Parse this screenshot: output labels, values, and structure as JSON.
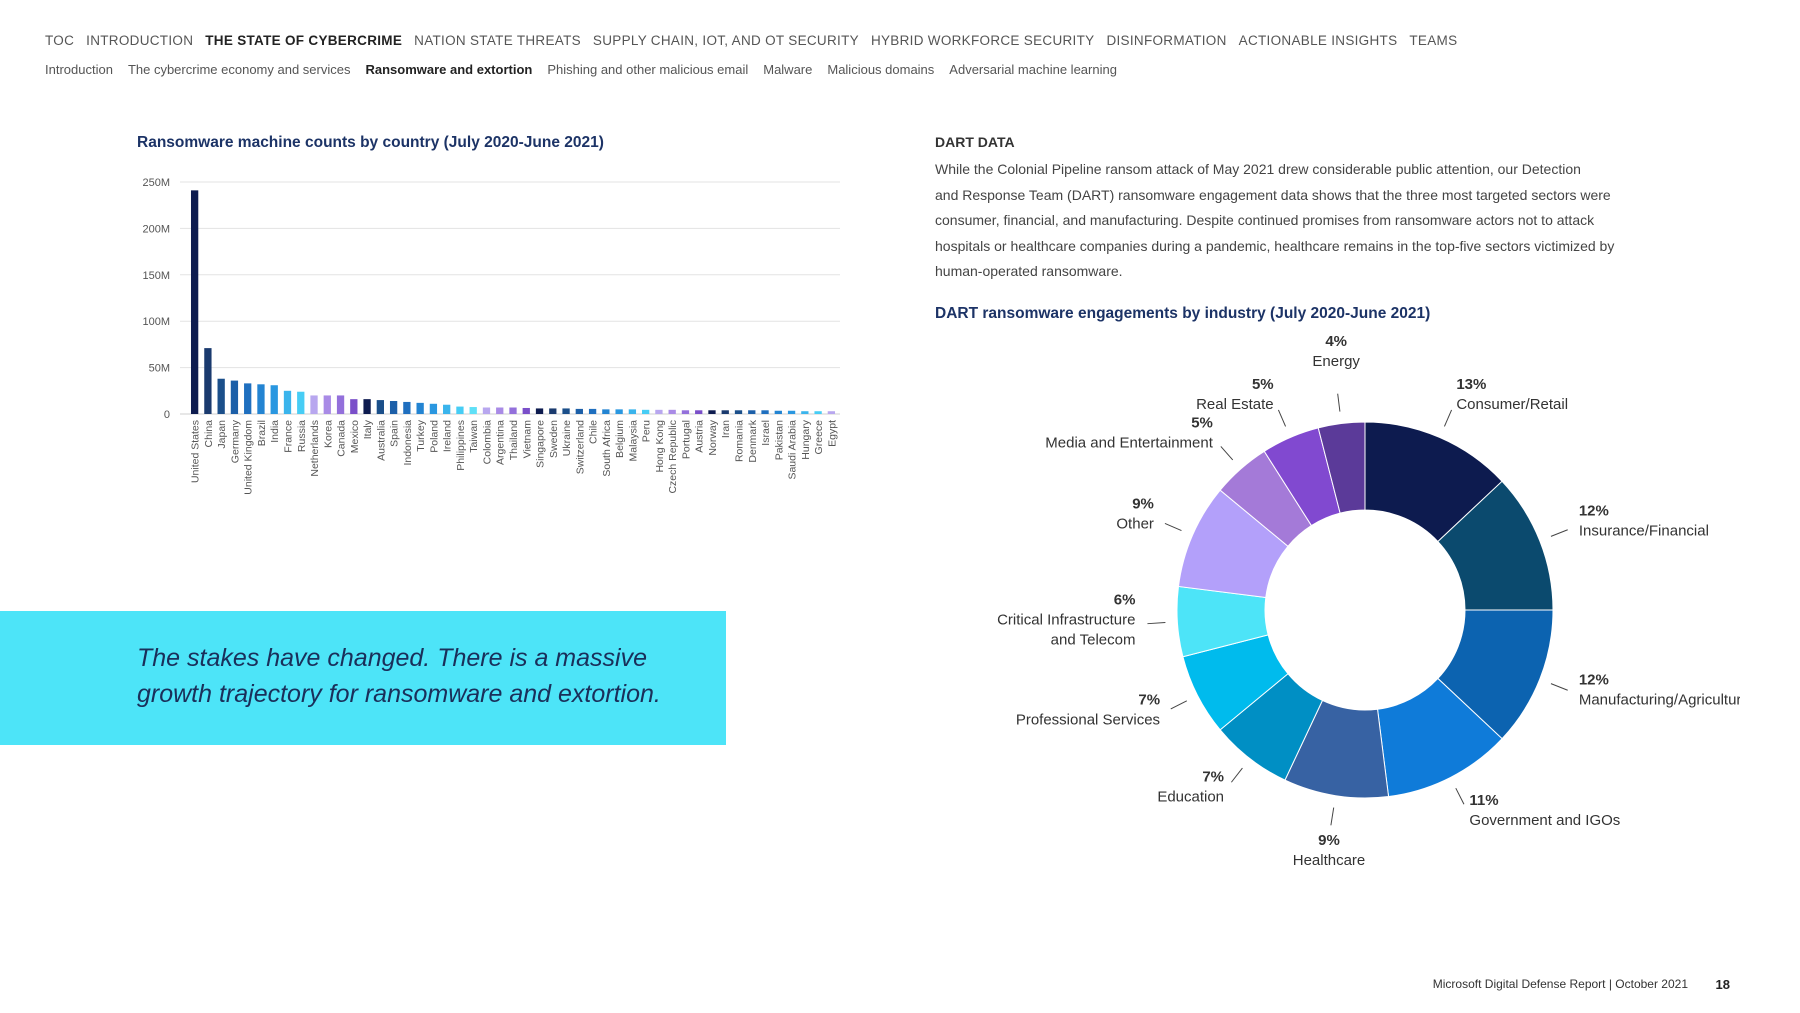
{
  "topnav": {
    "items": [
      "TOC",
      "INTRODUCTION",
      "THE STATE OF CYBERCRIME",
      "NATION STATE THREATS",
      "SUPPLY CHAIN, IOT, AND OT SECURITY",
      "HYBRID WORKFORCE SECURITY",
      "DISINFORMATION",
      "ACTIONABLE INSIGHTS",
      "TEAMS"
    ],
    "active": 2
  },
  "subnav": {
    "items": [
      "Introduction",
      "The cybercrime economy and services",
      "Ransomware and extortion",
      "Phishing and other malicious email",
      "Malware",
      "Malicious domains",
      "Adversarial machine learning"
    ],
    "active": 2
  },
  "dart": {
    "heading": "DART DATA",
    "lines": [
      "While the Colonial Pipeline ransom attack of May 2021 drew considerable public attention, our Detection",
      "and Response Team (DART) ransomware engagement data shows that the three most targeted sectors were",
      "consumer, financial, and manufacturing. Despite continued promises from ransomware actors not to attack",
      "hospitals or healthcare companies during a pandemic, healthcare remains in the top-five sectors victimized by",
      "human-operated ransomware."
    ]
  },
  "quote": {
    "line1": "The stakes have changed. There is a massive",
    "line2": "growth trajectory for ransomware and extortion."
  },
  "footer": {
    "text": "Microsoft Digital Defense Report | October 2021",
    "page": "18"
  },
  "chart_data": [
    {
      "type": "bar",
      "title": "Ransomware machine counts by country (July 2020-June 2021)",
      "xlabel": "",
      "ylabel": "",
      "ylim": [
        0,
        250000000
      ],
      "yticks": [
        0,
        50000000,
        100000000,
        150000000,
        200000000,
        250000000
      ],
      "ytick_labels": [
        "0",
        "50M",
        "100M",
        "150M",
        "200M",
        "250M"
      ],
      "grid": true,
      "categories": [
        "United States",
        "China",
        "Japan",
        "Germany",
        "United Kingdom",
        "Brazil",
        "India",
        "France",
        "Russia",
        "Netherlands",
        "Korea",
        "Canada",
        "Mexico",
        "Italy",
        "Australia",
        "Spain",
        "Indonesia",
        "Turkey",
        "Poland",
        "Ireland",
        "Philippines",
        "Taiwan",
        "Colombia",
        "Argentina",
        "Thailand",
        "Vietnam",
        "Singapore",
        "Sweden",
        "Ukraine",
        "Switzerland",
        "Chile",
        "South Africa",
        "Belgium",
        "Malaysia",
        "Peru",
        "Hong Kong",
        "Czech Republic",
        "Portugal",
        "Austria",
        "Norway",
        "Iran",
        "Romania",
        "Denmark",
        "Israel",
        "Pakistan",
        "Saudi Arabia",
        "Hungary",
        "Greece",
        "Egypt"
      ],
      "values": [
        241000000,
        71000000,
        38000000,
        36000000,
        33000000,
        32000000,
        31000000,
        25000000,
        24000000,
        20000000,
        20000000,
        20000000,
        16000000,
        16000000,
        15000000,
        14000000,
        13000000,
        12000000,
        11000000,
        10000000,
        8000000,
        7500000,
        7000000,
        7000000,
        7000000,
        6500000,
        6000000,
        6000000,
        6000000,
        5500000,
        5500000,
        5000000,
        5000000,
        5000000,
        4500000,
        4500000,
        4500000,
        4000000,
        4000000,
        4000000,
        4000000,
        4000000,
        4000000,
        4000000,
        3500000,
        3500000,
        3000000,
        3000000,
        3000000
      ],
      "colors": [
        "#0d1b4f",
        "#1a3a6e",
        "#1b4f8a",
        "#1c5fa8",
        "#1f6fbf",
        "#2384d2",
        "#2a97e0",
        "#3ab4ec",
        "#47cdf5",
        "#b8a7ef",
        "#a98be6",
        "#9370db",
        "#7a4fc9",
        "#0d1b4f",
        "#1b4f8a",
        "#1c5fa8",
        "#1f6fbf",
        "#2384d2",
        "#2a97e0",
        "#3ab4ec",
        "#47cdf5",
        "#5fe0f7",
        "#b8a7ef",
        "#a98be6",
        "#9370db",
        "#7a4fc9",
        "#0d1b4f",
        "#1a3a6e",
        "#1b4f8a",
        "#1c5fa8",
        "#1f6fbf",
        "#2384d2",
        "#2a97e0",
        "#3ab4ec",
        "#47cdf5",
        "#b8a7ef",
        "#a98be6",
        "#9370db",
        "#7a4fc9",
        "#0d1b4f",
        "#1a3a6e",
        "#1b4f8a",
        "#1c5fa8",
        "#1f6fbf",
        "#2384d2",
        "#2a97e0",
        "#3ab4ec",
        "#47cdf5",
        "#b8a7ef"
      ]
    },
    {
      "type": "pie",
      "title": "DART ransomware engagements by industry (July 2020-June 2021)",
      "donut": true,
      "slices": [
        {
          "label": "Consumer/Retail",
          "value": 13,
          "pct": "13%",
          "color": "#0d1b4f"
        },
        {
          "label": "Insurance/Financial",
          "value": 12,
          "pct": "12%",
          "color": "#0b4a6e"
        },
        {
          "label": "Manufacturing/Agriculture",
          "value": 12,
          "pct": "12%",
          "color": "#0c63b0"
        },
        {
          "label": "Government and IGOs",
          "value": 11,
          "pct": "11%",
          "color": "#0f7bd9"
        },
        {
          "label": "Healthcare",
          "value": 9,
          "pct": "9%",
          "color": "#3762a3"
        },
        {
          "label": "Education",
          "value": 7,
          "pct": "7%",
          "color": "#008fc4"
        },
        {
          "label": "Professional Services",
          "value": 7,
          "pct": "7%",
          "color": "#00bbed"
        },
        {
          "label": "Critical Infrastructure|and Telecom",
          "value": 6,
          "pct": "6%",
          "color": "#4de4f8"
        },
        {
          "label": "Other",
          "value": 9,
          "pct": "9%",
          "color": "#b3a0fa"
        },
        {
          "label": "Media and Entertainment",
          "value": 5,
          "pct": "5%",
          "color": "#a47ad8"
        },
        {
          "label": "Real Estate",
          "value": 5,
          "pct": "5%",
          "color": "#8149d0"
        },
        {
          "label": "Energy",
          "value": 4,
          "pct": "4%",
          "color": "#5b3a99"
        }
      ]
    }
  ]
}
